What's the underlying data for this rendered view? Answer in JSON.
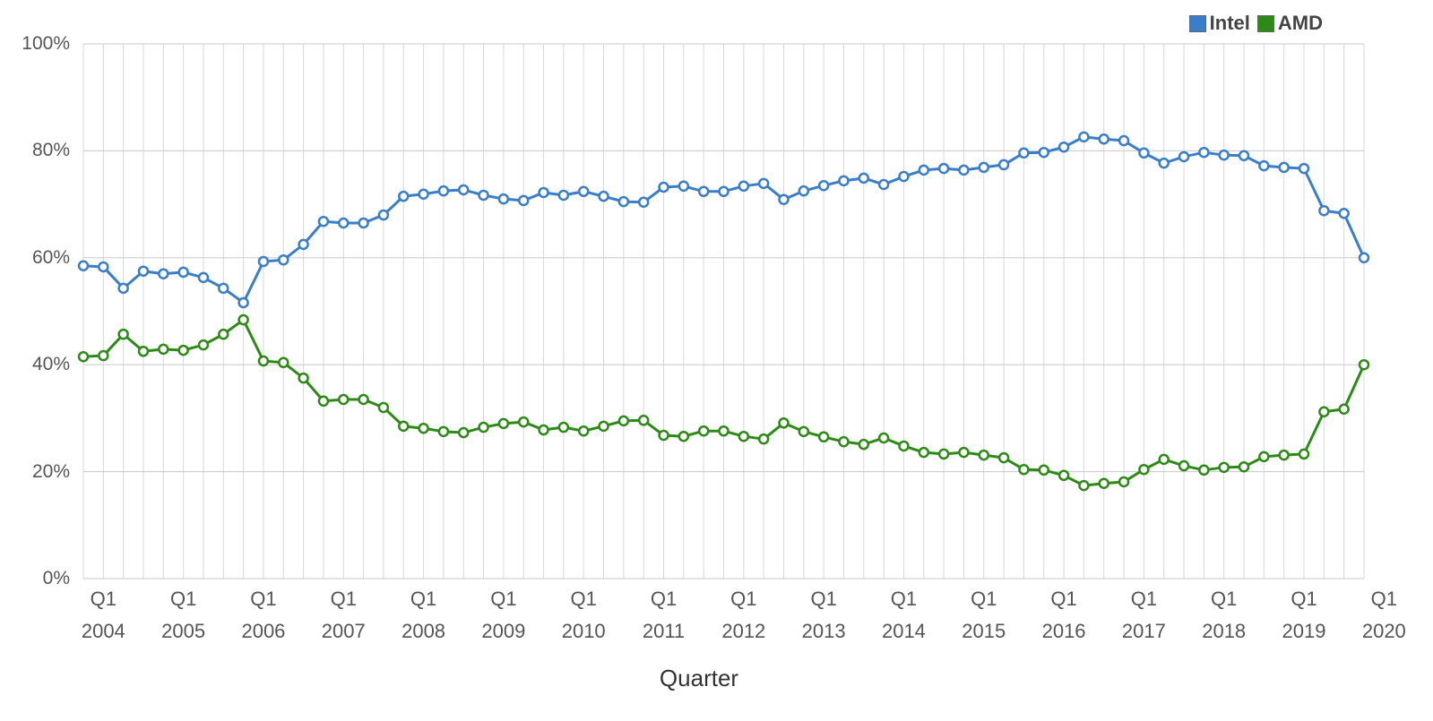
{
  "chart_data": {
    "type": "line",
    "x_label": "Quarter",
    "legend": "top-right",
    "grid": true,
    "categories": [
      null,
      "Q1\n2004",
      null,
      null,
      null,
      "Q1\n2005",
      null,
      null,
      null,
      "Q1\n2006",
      null,
      null,
      null,
      "Q1\n2007",
      null,
      null,
      null,
      "Q1\n2008",
      null,
      null,
      null,
      "Q1\n2009",
      null,
      null,
      null,
      "Q1\n2010",
      null,
      null,
      null,
      "Q1\n2011",
      null,
      null,
      null,
      "Q1\n2012",
      null,
      null,
      null,
      "Q1\n2013",
      null,
      null,
      null,
      "Q1\n2014",
      null,
      null,
      null,
      "Q1\n2015",
      null,
      null,
      null,
      "Q1\n2016",
      null,
      null,
      null,
      "Q1\n2017",
      null,
      null,
      null,
      "Q1\n2018",
      null,
      null,
      null,
      "Q1\n2019",
      null,
      null,
      null,
      "Q1\n2020"
    ],
    "ylim": [
      0,
      100
    ],
    "yticks": [
      {
        "value": 0,
        "label": "0%"
      },
      {
        "value": 20,
        "label": "20%"
      },
      {
        "value": 40,
        "label": "40%"
      },
      {
        "value": 60,
        "label": "60%"
      },
      {
        "value": 80,
        "label": "80%"
      },
      {
        "value": 100,
        "label": "100%"
      }
    ],
    "series": [
      {
        "name": "Intel",
        "color": "#3a7dc9",
        "values": [
          58.5,
          58.3,
          54.3,
          57.5,
          57.0,
          57.3,
          56.3,
          54.3,
          51.6,
          59.3,
          59.6,
          62.5,
          66.8,
          66.5,
          66.5,
          68.0,
          71.5,
          71.9,
          72.5,
          72.7,
          71.7,
          71.0,
          70.7,
          72.2,
          71.7,
          72.4,
          71.5,
          70.5,
          70.4,
          73.2,
          73.4,
          72.4,
          72.4,
          73.4,
          73.9,
          70.9,
          72.5,
          73.5,
          74.4,
          74.9,
          73.7,
          75.2,
          76.4,
          76.7,
          76.4,
          76.9,
          77.4,
          79.6,
          79.7,
          80.7,
          82.6,
          82.2,
          81.9,
          79.6,
          77.7,
          78.9,
          79.7,
          79.2,
          79.1,
          77.2,
          76.9,
          76.7,
          68.8,
          68.3,
          60.0,
          null
        ]
      },
      {
        "name": "AMD",
        "color": "#2e8a17",
        "values": [
          41.5,
          41.7,
          45.7,
          42.5,
          42.9,
          42.7,
          43.7,
          45.7,
          48.4,
          40.7,
          40.4,
          37.5,
          33.2,
          33.5,
          33.5,
          32.0,
          28.5,
          28.1,
          27.5,
          27.3,
          28.3,
          29.0,
          29.3,
          27.8,
          28.3,
          27.6,
          28.5,
          29.5,
          29.6,
          26.8,
          26.6,
          27.6,
          27.6,
          26.6,
          26.1,
          29.1,
          27.5,
          26.5,
          25.6,
          25.1,
          26.3,
          24.8,
          23.6,
          23.3,
          23.6,
          23.1,
          22.6,
          20.4,
          20.3,
          19.3,
          17.4,
          17.8,
          18.1,
          20.4,
          22.3,
          21.1,
          20.3,
          20.8,
          20.9,
          22.8,
          23.1,
          23.3,
          31.2,
          31.7,
          40.0,
          null
        ]
      }
    ]
  }
}
